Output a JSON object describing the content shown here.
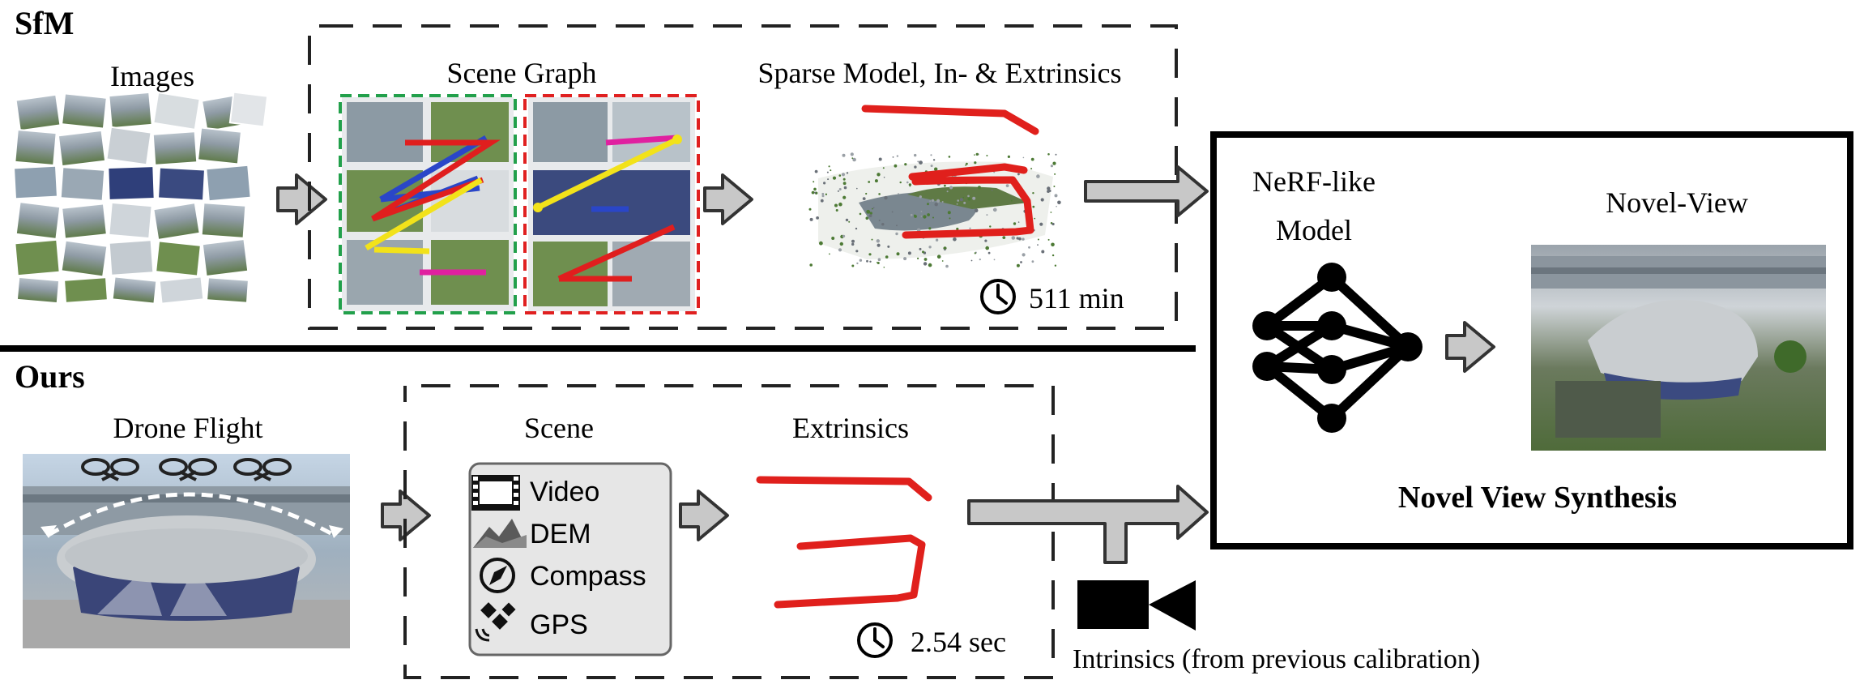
{
  "sfm": {
    "row_title": "SfM",
    "images_label": "Images",
    "scene_graph_label": "Scene Graph",
    "sparse_model_label": "Sparse Model, In- & Extrinsics",
    "time": "511 min"
  },
  "ours": {
    "row_title": "Ours",
    "drone_flight_label": "Drone Flight",
    "scene_label": "Scene",
    "scene_items": [
      "Video",
      "DEM",
      "Compass",
      "GPS"
    ],
    "extrinsics_label": "Extrinsics",
    "time": "2.54 sec",
    "intrinsics_label": "Intrinsics (from previous calibration)"
  },
  "nvs": {
    "nerf_label_line1": "NeRF-like",
    "nerf_label_line2": "Model",
    "novel_view_label": "Novel-View",
    "title": "Novel View Synthesis"
  },
  "icons": {
    "clock": "clock-icon",
    "video": "film-strip-icon",
    "dem": "mountain-icon",
    "compass": "compass-icon",
    "gps": "satellite-icon",
    "camera": "video-camera-icon",
    "drone": "drone-icon",
    "neural_net": "neural-network-icon"
  },
  "colors": {
    "green_cluster": "#22a04b",
    "red_cluster": "#e02020",
    "trajectory": "#e0201c",
    "arrow_fill": "#c8c8c8",
    "arrow_stroke": "#333333"
  }
}
